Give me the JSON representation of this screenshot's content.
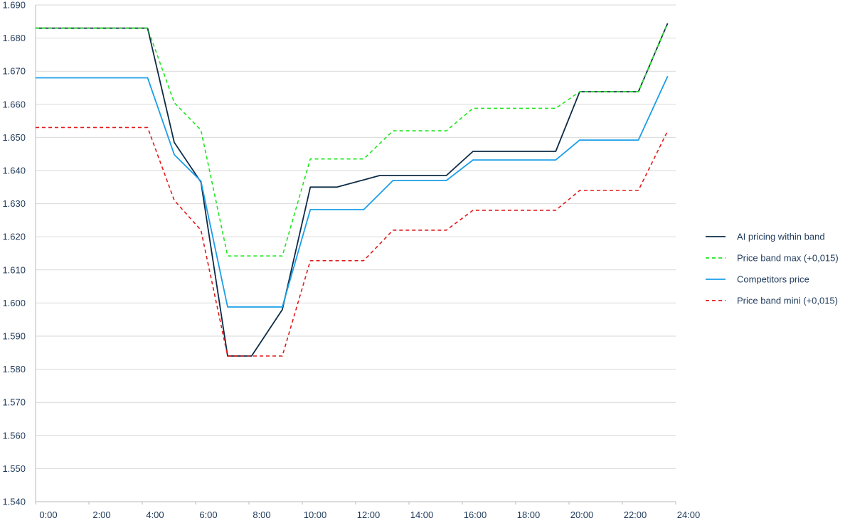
{
  "chart_data": {
    "type": "line",
    "title": "",
    "xlabel": "",
    "ylabel": "",
    "xlim": [
      0,
      24
    ],
    "ylim": [
      1.54,
      1.69
    ],
    "y_ticks": [
      "1.540",
      "1.550",
      "1.560",
      "1.570",
      "1.580",
      "1.590",
      "1.600",
      "1.610",
      "1.620",
      "1.630",
      "1.640",
      "1.650",
      "1.660",
      "1.670",
      "1.680",
      "1.690"
    ],
    "x_ticks": [
      {
        "value": 0,
        "label": "0:00"
      },
      {
        "value": 2,
        "label": "2:00"
      },
      {
        "value": 4,
        "label": "4:00"
      },
      {
        "value": 6,
        "label": "6:00"
      },
      {
        "value": 8,
        "label": "8:00"
      },
      {
        "value": 10,
        "label": "10:00"
      },
      {
        "value": 12,
        "label": "12:00"
      },
      {
        "value": 14,
        "label": "14:00"
      },
      {
        "value": 16,
        "label": "16:00"
      },
      {
        "value": 18,
        "label": "18:00"
      },
      {
        "value": 20,
        "label": "20:00"
      },
      {
        "value": 22,
        "label": "22:00"
      },
      {
        "value": 24,
        "label": "24:00"
      }
    ],
    "grid": true,
    "legend_position": "right",
    "series": [
      {
        "name": "AI pricing within band",
        "color": "#0d2b45",
        "dash": "solid",
        "points": [
          [
            0,
            1.683
          ],
          [
            4.2,
            1.683
          ],
          [
            5.2,
            1.6485
          ],
          [
            6.2,
            1.6365
          ],
          [
            7.2,
            1.584
          ],
          [
            8.1,
            1.584
          ],
          [
            9.25,
            1.598
          ],
          [
            10.3,
            1.635
          ],
          [
            11.3,
            1.635
          ],
          [
            12.9,
            1.6385
          ],
          [
            15.4,
            1.6385
          ],
          [
            16.4,
            1.6458
          ],
          [
            19.5,
            1.6458
          ],
          [
            20.4,
            1.6638
          ],
          [
            22.6,
            1.6638
          ],
          [
            23.7,
            1.6845
          ]
        ]
      },
      {
        "name": "Price band max (+0,015)",
        "color": "#1ee61e",
        "dash": "dashed",
        "points": [
          [
            0,
            1.683
          ],
          [
            4.2,
            1.683
          ],
          [
            5.2,
            1.6605
          ],
          [
            6.2,
            1.6522
          ],
          [
            7.2,
            1.6142
          ],
          [
            9.25,
            1.6142
          ],
          [
            10.3,
            1.6435
          ],
          [
            12.3,
            1.6435
          ],
          [
            13.4,
            1.652
          ],
          [
            15.4,
            1.652
          ],
          [
            16.4,
            1.6588
          ],
          [
            19.5,
            1.6588
          ],
          [
            20.4,
            1.6638
          ],
          [
            22.6,
            1.6638
          ],
          [
            23.7,
            1.6845
          ]
        ]
      },
      {
        "name": "Competitors price",
        "color": "#1a9ee8",
        "dash": "solid",
        "points": [
          [
            0,
            1.668
          ],
          [
            4.2,
            1.668
          ],
          [
            5.2,
            1.6448
          ],
          [
            6.2,
            1.6368
          ],
          [
            7.2,
            1.5988
          ],
          [
            9.25,
            1.5988
          ],
          [
            10.3,
            1.6282
          ],
          [
            12.3,
            1.6282
          ],
          [
            13.4,
            1.637
          ],
          [
            15.4,
            1.637
          ],
          [
            16.4,
            1.6432
          ],
          [
            19.5,
            1.6432
          ],
          [
            20.4,
            1.6492
          ],
          [
            22.6,
            1.6492
          ],
          [
            23.7,
            1.6685
          ]
        ]
      },
      {
        "name": "Price band mini (+0,015)",
        "color": "#e11b1b",
        "dash": "dashed",
        "points": [
          [
            0,
            1.653
          ],
          [
            4.2,
            1.653
          ],
          [
            5.2,
            1.631
          ],
          [
            6.2,
            1.622
          ],
          [
            7.2,
            1.584
          ],
          [
            9.25,
            1.584
          ],
          [
            10.3,
            1.6128
          ],
          [
            12.3,
            1.6128
          ],
          [
            13.4,
            1.622
          ],
          [
            15.4,
            1.622
          ],
          [
            16.4,
            1.628
          ],
          [
            19.5,
            1.628
          ],
          [
            20.4,
            1.634
          ],
          [
            22.6,
            1.634
          ],
          [
            23.7,
            1.652
          ]
        ]
      }
    ]
  },
  "colors": {
    "grid": "#d9d9d9",
    "axis": "#b8b8b8",
    "text": "#1f3a5a"
  }
}
